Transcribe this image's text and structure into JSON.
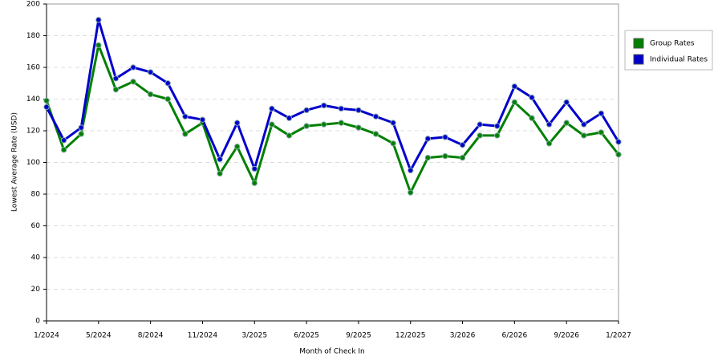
{
  "chart_data": {
    "type": "line",
    "x_label": "Month of Check In",
    "y_label": "Lowest Average Rate (USD)",
    "categories": [
      "1/2024",
      null,
      null,
      "5/2024",
      null,
      null,
      "8/2024",
      null,
      null,
      "11/2024",
      null,
      null,
      "3/2025",
      null,
      null,
      "6/2025",
      null,
      null,
      "9/2025",
      null,
      null,
      "12/2025",
      null,
      null,
      "3/2026",
      null,
      null,
      "6/2026",
      null,
      null,
      "9/2026",
      null,
      null,
      "1/2027"
    ],
    "series": [
      {
        "name": "Group Rates",
        "color": "#008000",
        "values": [
          139,
          108,
          118,
          174,
          146,
          151,
          143,
          140,
          118,
          125,
          93,
          110,
          87,
          124,
          117,
          123,
          124,
          125,
          122,
          118,
          112,
          81,
          103,
          104,
          103,
          117,
          117,
          138,
          128,
          112,
          125,
          117,
          119,
          105
        ]
      },
      {
        "name": "Individual Rates",
        "color": "#0000cc",
        "values": [
          135,
          114,
          122,
          190,
          153,
          160,
          157,
          150,
          129,
          127,
          102,
          125,
          96,
          134,
          128,
          133,
          136,
          134,
          133,
          129,
          125,
          95,
          115,
          116,
          111,
          124,
          123,
          148,
          141,
          124,
          138,
          124,
          131,
          113
        ]
      }
    ],
    "ylim": [
      0,
      200
    ],
    "yticks": [
      0,
      20,
      40,
      60,
      80,
      100,
      120,
      140,
      160,
      180,
      200
    ],
    "grid": true,
    "legend": "right"
  }
}
